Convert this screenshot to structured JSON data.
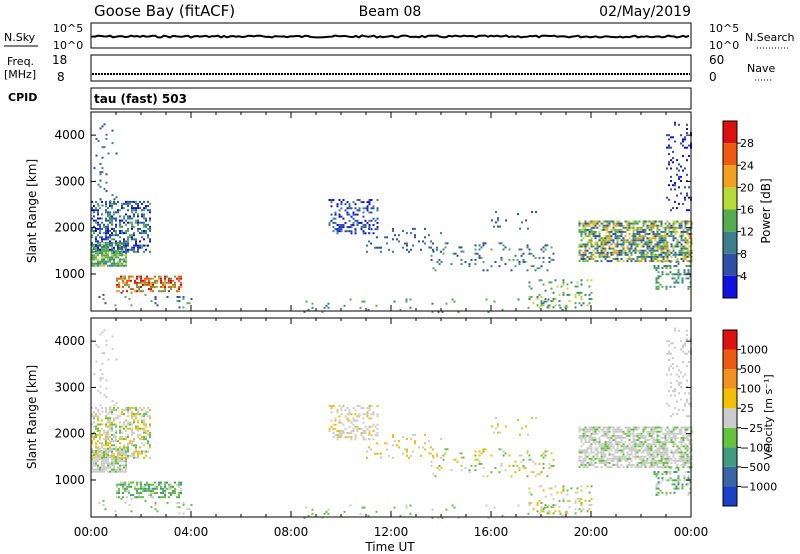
{
  "header": {
    "station": "Goose Bay (fitACF)",
    "beam": "Beam 08",
    "date": "02/May/2019"
  },
  "top_panels": {
    "nsky": {
      "label": "N.Sky",
      "ticks": [
        "10^5",
        "10^0"
      ],
      "right_label": "N.Search",
      "right_ticks": [
        "10^5",
        "10^0"
      ]
    },
    "freq": {
      "label_line1": "Freq.",
      "label_line2": "[MHz]",
      "ticks": [
        "18",
        "8"
      ],
      "right_label": "Nave",
      "right_ticks": [
        "60",
        "0"
      ]
    },
    "cpid": {
      "label": "CPID",
      "value": "tau (fast) 503"
    }
  },
  "chart_data": [
    {
      "type": "heatmap",
      "name": "power-panel",
      "ylabel": "Slant Range [km]",
      "yticks": [
        "1000",
        "2000",
        "3000",
        "4000"
      ],
      "ylim": [
        200,
        4500
      ],
      "xlim": [
        0,
        24
      ],
      "colorbar": {
        "label": "Power [dB]",
        "ticks": [
          "4",
          "8",
          "12",
          "16",
          "20",
          "24",
          "28"
        ],
        "colors": [
          "#1010e0",
          "#2f4fa8",
          "#3c7f8c",
          "#55ad4f",
          "#b8d93a",
          "#f2a020",
          "#ee5a10",
          "#dd1010"
        ]
      }
    },
    {
      "type": "heatmap",
      "name": "velocity-panel",
      "ylabel": "Slant Range [km]",
      "yticks": [
        "1000",
        "2000",
        "3000",
        "4000"
      ],
      "ylim": [
        200,
        4500
      ],
      "xlim": [
        0,
        24
      ],
      "xticks": [
        "00:00",
        "04:00",
        "08:00",
        "12:00",
        "16:00",
        "20:00",
        "00:00"
      ],
      "xlabel": "Time UT",
      "colorbar": {
        "label": "Velocity [m s⁻¹]",
        "ticks": [
          "1000",
          "500",
          "100",
          "25",
          "−25",
          "−100",
          "−500",
          "−1000"
        ],
        "colors": [
          "#1a3fc8",
          "#3a66a8",
          "#3f9a80",
          "#64c23c",
          "#cccccc",
          "#f2c000",
          "#f29020",
          "#ee5a10",
          "#e01010"
        ]
      }
    }
  ]
}
